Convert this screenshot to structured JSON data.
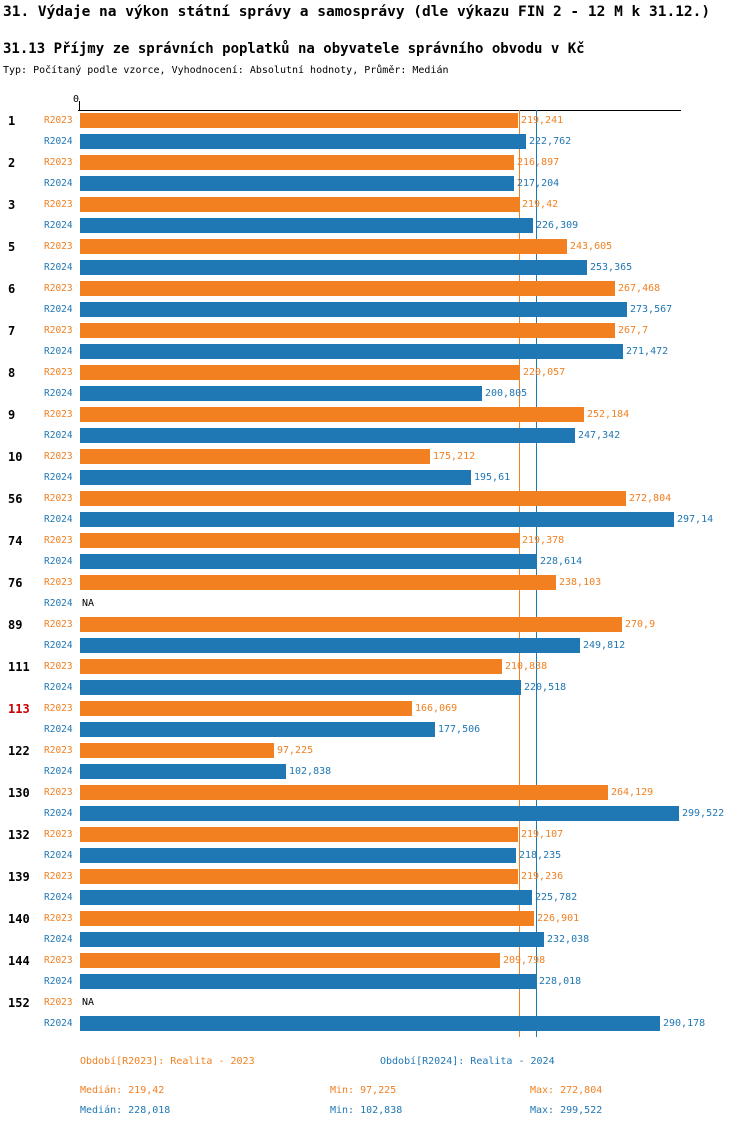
{
  "page": {
    "title": "31. Výdaje na výkon státní správy a samosprávy (dle výkazu FIN 2 - 12 M k 31.12.)",
    "subtitle": "31.13 Příjmy ze správních poplatků na obyvatele správního obvodu v Kč",
    "meta": "Typ: Počítaný podle vzorce, Vyhodnocení: Absolutní hodnoty, Průměr: Medián"
  },
  "chart_data": {
    "type": "bar",
    "orientation": "horizontal",
    "x_axis": {
      "zero_label": "0",
      "min": 0,
      "max": 300
    },
    "grid": false,
    "legend_position": "bottom",
    "categories": [
      "1",
      "2",
      "3",
      "5",
      "6",
      "7",
      "8",
      "9",
      "10",
      "56",
      "74",
      "76",
      "89",
      "111",
      "113",
      "122",
      "130",
      "132",
      "139",
      "140",
      "144",
      "152"
    ],
    "highlighted_category": "113",
    "highlight_color": "#cc0000",
    "series": [
      {
        "name": "R2023",
        "color": "#f28021",
        "legend": "Období[R2023]: Realita - 2023",
        "median": 219.42,
        "stats": {
          "median_label": "Medián: 219,42",
          "min_label": "Min: 97,225",
          "max_label": "Max: 272,804"
        },
        "values": [
          219.241,
          216.897,
          219.42,
          243.605,
          267.468,
          267.7,
          220.057,
          252.184,
          175.212,
          272.804,
          219.378,
          238.103,
          270.9,
          210.838,
          166.069,
          97.225,
          264.129,
          219.107,
          219.236,
          226.901,
          209.798,
          null
        ],
        "labels": [
          "219,241",
          "216,897",
          "219,42",
          "243,605",
          "267,468",
          "267,7",
          "220,057",
          "252,184",
          "175,212",
          "272,804",
          "219,378",
          "238,103",
          "270,9",
          "210,838",
          "166,069",
          "97,225",
          "264,129",
          "219,107",
          "219,236",
          "226,901",
          "209,798",
          "NA"
        ]
      },
      {
        "name": "R2024",
        "color": "#1f77b4",
        "legend": "Období[R2024]: Realita - 2024",
        "median": 228.018,
        "stats": {
          "median_label": "Medián: 228,018",
          "min_label": "Min: 102,838",
          "max_label": "Max: 299,522"
        },
        "values": [
          222.762,
          217.204,
          226.309,
          253.365,
          273.567,
          271.472,
          200.805,
          247.342,
          195.61,
          297.14,
          228.614,
          null,
          249.812,
          220.518,
          177.506,
          102.838,
          299.522,
          218.235,
          225.782,
          232.038,
          228.018,
          290.178
        ],
        "labels": [
          "222,762",
          "217,204",
          "226,309",
          "253,365",
          "273,567",
          "271,472",
          "200,805",
          "247,342",
          "195,61",
          "297,14",
          "228,614",
          "NA",
          "249,812",
          "220,518",
          "177,506",
          "102,838",
          "299,522",
          "218,235",
          "225,782",
          "232,038",
          "228,018",
          "290,178"
        ]
      }
    ]
  }
}
